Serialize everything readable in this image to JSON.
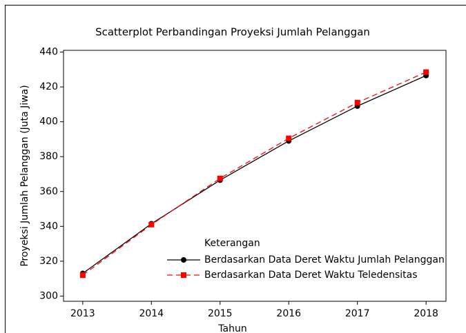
{
  "chart_data": {
    "type": "line",
    "title": "Scatterplot Perbandingan Proyeksi Jumlah Pelanggan",
    "x_label": "Tahun",
    "y_label": "Proyeksi Jumlah Pelanggan (Juta Jiwa)",
    "legend_title": "Keterangan",
    "x": [
      2013,
      2014,
      2015,
      2016,
      2017,
      2018
    ],
    "series": [
      {
        "name": "Berdasarkan Data Deret Waktu Jumlah Pelanggan",
        "color": "#000000",
        "marker": "circle",
        "dash": false,
        "values": [
          313,
          341.5,
          366.5,
          389,
          409,
          426.5
        ]
      },
      {
        "name": "Berdasarkan Data Deret Waktu Teledensitas",
        "color": "#ff0000",
        "marker": "square",
        "dash": true,
        "values": [
          312,
          341,
          367.5,
          390.5,
          411,
          428.5
        ]
      }
    ],
    "xlim": [
      2012.72,
      2018.29
    ],
    "xticks": [
      2013,
      2014,
      2015,
      2016,
      2017,
      2018
    ],
    "ylim": [
      297,
      441
    ],
    "yticks": [
      300,
      320,
      340,
      360,
      380,
      400,
      420,
      440
    ]
  }
}
